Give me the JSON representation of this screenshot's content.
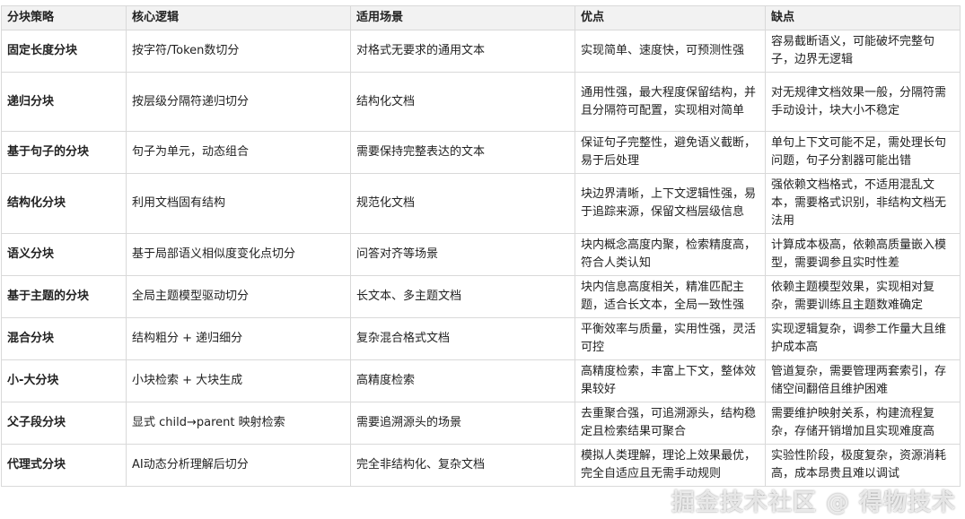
{
  "headers": [
    "分块策略",
    "核心逻辑",
    "适用场景",
    "优点",
    "缺点"
  ],
  "rows": [
    [
      "固定长度分块",
      "按字符/Token数切分",
      "对格式无要求的通用文本",
      "实现简单、速度快，可预测性强",
      "容易截断语义，可能破坏完整句子，边界无逻辑"
    ],
    [
      "递归分块",
      "按层级分隔符递归切分",
      "结构化文档",
      "通用性强，最大程度保留结构，并且分隔符可配置，实现相对简单",
      "对无规律文档效果一般，分隔符需手动设计，块大小不稳定"
    ],
    [
      "基于句子的分块",
      "句子为单元，动态组合",
      "需要保持完整表达的文本",
      "保证句子完整性，避免语义截断，易于后处理",
      "单句上下文可能不足，需处理长句问题，句子分割器可能出错"
    ],
    [
      "结构化分块",
      "利用文档固有结构",
      "规范化文档",
      "块边界清晰，上下文逻辑性强，易于追踪来源，保留文档层级信息",
      "强依赖文档格式，不适用混乱文本，需要格式识别，非结构文档无法用"
    ],
    [
      "语义分块",
      "基于局部语义相似度变化点切分",
      "问答对齐等场景",
      "块内概念高度内聚，检索精度高，符合人类认知",
      "计算成本极高，依赖高质量嵌入模型，需要调参且实时性差"
    ],
    [
      "基于主题的分块",
      "全局主题模型驱动切分",
      "长文本、多主题文档",
      "块内信息高度相关，精准匹配主题，适合长文本，全局一致性强",
      "依赖主题模型效果，实现相对复杂，需要训练且主题数难确定"
    ],
    [
      "混合分块",
      "结构粗分 + 递归细分",
      "复杂混合格式文档",
      "平衡效率与质量，实用性强，灵活可控",
      "实现逻辑复杂，调参工作量大且维护成本高"
    ],
    [
      "小-大分块",
      "小块检索 + 大块生成",
      "高精度检索",
      "高精度检索，丰富上下文，整体效果较好",
      "管道复杂，需要管理两套索引，存储空间翻倍且维护困难"
    ],
    [
      "父子段分块",
      "显式 child→parent 映射检索",
      "需要追溯源头的场景",
      "去重聚合强，可追溯源头，结构稳定且检索结果可聚合",
      "需要维护映射关系，构建流程复杂，存储开销增加且实现难度高"
    ],
    [
      "代理式分块",
      "AI动态分析理解后切分",
      "完全非结构化、复杂文档",
      "模拟人类理解，理论上效果最优，完全自适应且无需手动规则",
      "实验性阶段，极度复杂，资源消耗高，成本昂贵且难以调试"
    ]
  ],
  "watermark": "掘金技术社区 @ 得物技术"
}
